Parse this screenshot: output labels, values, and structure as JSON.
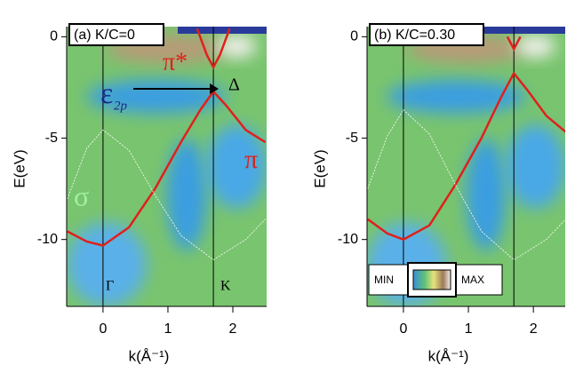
{
  "chart_data": [
    {
      "type": "line",
      "title": "(a) K/C=0",
      "xlabel": "k(Å⁻¹)",
      "ylabel": "E(eV)",
      "xlim": [
        -0.56,
        2.52
      ],
      "ylim": [
        -13.3,
        0.5
      ],
      "xticks": [
        0,
        1,
        2
      ],
      "yticks": [
        0,
        -5,
        -10
      ],
      "vlines": [
        0,
        1.7
      ],
      "series": [
        {
          "name": "π",
          "color": "#e0201b",
          "x": [
            -0.55,
            -0.25,
            0,
            0.4,
            0.8,
            1.2,
            1.5,
            1.7,
            1.9,
            2.2,
            2.5
          ],
          "values": [
            -9.6,
            -10.1,
            -10.3,
            -9.4,
            -7.5,
            -5.2,
            -3.6,
            -2.7,
            -3.4,
            -4.6,
            -5.2
          ]
        },
        {
          "name": "π*",
          "color": "#e0201b",
          "x": [
            1.45,
            1.6,
            1.7,
            1.8,
            1.95
          ],
          "values": [
            0.4,
            -0.9,
            -1.5,
            -0.9,
            0.4
          ]
        },
        {
          "name": "σ",
          "color": "#ffffff",
          "x": [
            -0.55,
            -0.25,
            0,
            0.4,
            0.8,
            1.2,
            1.7,
            2.2,
            2.5
          ],
          "values": [
            -8,
            -5.5,
            -4.6,
            -5.6,
            -7.8,
            -9.8,
            -11,
            -10,
            -9
          ]
        }
      ],
      "annotations": [
        {
          "text": "π*",
          "color": "#e0201b"
        },
        {
          "text": "ε",
          "color": "#1a2a8a"
        },
        {
          "text": "2p",
          "color": "#1a2a8a"
        },
        {
          "text": "Δ",
          "color": "#000000"
        },
        {
          "text": "π",
          "color": "#e0201b"
        },
        {
          "text": "σ",
          "color": "#9ef0a0"
        },
        {
          "text": "Γ",
          "color": "#000000"
        },
        {
          "text": "K",
          "color": "#000000"
        }
      ]
    },
    {
      "type": "line",
      "title": "(b) K/C=0.30",
      "xlabel": "k(Å⁻¹)",
      "ylabel": "E(eV)",
      "xlim": [
        -0.56,
        2.49
      ],
      "ylim": [
        -13.3,
        0.5
      ],
      "xticks": [
        0,
        1,
        2
      ],
      "yticks": [
        0,
        -5,
        -10
      ],
      "vlines": [
        0,
        1.7
      ],
      "series": [
        {
          "name": "π",
          "color": "#e0201b",
          "x": [
            -0.55,
            -0.25,
            0,
            0.4,
            0.8,
            1.2,
            1.5,
            1.7,
            1.9,
            2.2,
            2.5
          ],
          "values": [
            -9,
            -9.7,
            -10,
            -9.3,
            -7.3,
            -5,
            -3,
            -1.8,
            -2.6,
            -3.9,
            -4.7
          ]
        },
        {
          "name": "π*",
          "color": "#e0201b",
          "x": [
            1.6,
            1.7,
            1.8
          ],
          "values": [
            0,
            -0.6,
            0
          ]
        },
        {
          "name": "σ",
          "color": "#ffffff",
          "x": [
            -0.55,
            -0.25,
            0,
            0.4,
            0.8,
            1.2,
            1.7,
            2.2,
            2.5
          ],
          "values": [
            -7.5,
            -4.9,
            -3.6,
            -4.8,
            -7.3,
            -9.6,
            -11,
            -10,
            -9
          ]
        }
      ],
      "colorbar": {
        "min_label": "MIN",
        "max_label": "MAX"
      }
    }
  ]
}
